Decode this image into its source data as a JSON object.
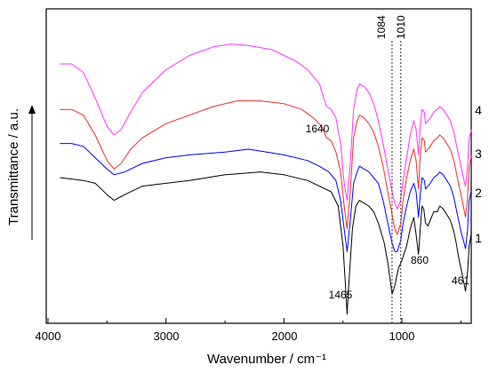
{
  "chart_data": {
    "type": "line",
    "xlabel": "Wavenumber / cm⁻¹",
    "ylabel": "Transmittance / a.u.",
    "xlim": [
      4000,
      400
    ],
    "x_reversed": true,
    "x_ticks": [
      4000,
      3000,
      2000,
      1000
    ],
    "x_tick_labels": [
      "4000",
      "3000",
      "2000",
      "1000"
    ],
    "y_tick_labels": "none",
    "grid": false,
    "reference_lines": [
      {
        "x": 1084,
        "label": "1084",
        "style": "dotted"
      },
      {
        "x": 1010,
        "label": "1010",
        "style": "dotted"
      }
    ],
    "annotations": [
      {
        "text": "1640",
        "x": 1640
      },
      {
        "text": "1465",
        "x": 1465
      },
      {
        "text": "860",
        "x": 860
      },
      {
        "text": "461",
        "x": 461
      }
    ],
    "series": [
      {
        "name": "1",
        "color": "#000000",
        "points": [
          [
            3900,
            0.5
          ],
          [
            3700,
            0.51
          ],
          [
            3600,
            0.52
          ],
          [
            3500,
            0.56
          ],
          [
            3440,
            0.58
          ],
          [
            3350,
            0.56
          ],
          [
            3200,
            0.53
          ],
          [
            3000,
            0.52
          ],
          [
            2800,
            0.51
          ],
          [
            2500,
            0.49
          ],
          [
            2200,
            0.48
          ],
          [
            2000,
            0.49
          ],
          [
            1800,
            0.51
          ],
          [
            1700,
            0.53
          ],
          [
            1600,
            0.55
          ],
          [
            1540,
            0.6
          ],
          [
            1500,
            0.74
          ],
          [
            1480,
            0.87
          ],
          [
            1465,
            0.98
          ],
          [
            1450,
            0.87
          ],
          [
            1420,
            0.68
          ],
          [
            1390,
            0.6
          ],
          [
            1360,
            0.58
          ],
          [
            1320,
            0.59
          ],
          [
            1280,
            0.6
          ],
          [
            1240,
            0.62
          ],
          [
            1200,
            0.66
          ],
          [
            1150,
            0.73
          ],
          [
            1120,
            0.8
          ],
          [
            1084,
            0.91
          ],
          [
            1060,
            0.88
          ],
          [
            1030,
            0.82
          ],
          [
            1000,
            0.79
          ],
          [
            960,
            0.74
          ],
          [
            930,
            0.68
          ],
          [
            900,
            0.64
          ],
          [
            880,
            0.7
          ],
          [
            860,
            0.77
          ],
          [
            845,
            0.68
          ],
          [
            830,
            0.6
          ],
          [
            815,
            0.61
          ],
          [
            800,
            0.66
          ],
          [
            780,
            0.67
          ],
          [
            760,
            0.65
          ],
          [
            730,
            0.62
          ],
          [
            700,
            0.62
          ],
          [
            680,
            0.6
          ],
          [
            650,
            0.61
          ],
          [
            620,
            0.63
          ],
          [
            590,
            0.65
          ],
          [
            560,
            0.69
          ],
          [
            540,
            0.73
          ],
          [
            520,
            0.78
          ],
          [
            500,
            0.82
          ],
          [
            480,
            0.86
          ],
          [
            461,
            0.9
          ],
          [
            445,
            0.84
          ],
          [
            430,
            0.74
          ],
          [
            410,
            0.69
          ]
        ]
      },
      {
        "name": "2",
        "color": "#0000ff",
        "points": [
          [
            3900,
            0.38
          ],
          [
            3800,
            0.38
          ],
          [
            3700,
            0.39
          ],
          [
            3600,
            0.43
          ],
          [
            3500,
            0.47
          ],
          [
            3440,
            0.49
          ],
          [
            3350,
            0.48
          ],
          [
            3200,
            0.45
          ],
          [
            3000,
            0.43
          ],
          [
            2800,
            0.42
          ],
          [
            2500,
            0.41
          ],
          [
            2300,
            0.4
          ],
          [
            2000,
            0.42
          ],
          [
            1800,
            0.44
          ],
          [
            1700,
            0.46
          ],
          [
            1620,
            0.48
          ],
          [
            1560,
            0.51
          ],
          [
            1520,
            0.58
          ],
          [
            1490,
            0.68
          ],
          [
            1465,
            0.76
          ],
          [
            1440,
            0.66
          ],
          [
            1410,
            0.52
          ],
          [
            1380,
            0.48
          ],
          [
            1360,
            0.46
          ],
          [
            1320,
            0.47
          ],
          [
            1280,
            0.48
          ],
          [
            1240,
            0.5
          ],
          [
            1200,
            0.52
          ],
          [
            1160,
            0.58
          ],
          [
            1120,
            0.66
          ],
          [
            1084,
            0.73
          ],
          [
            1060,
            0.76
          ],
          [
            1040,
            0.76
          ],
          [
            1010,
            0.72
          ],
          [
            990,
            0.66
          ],
          [
            960,
            0.6
          ],
          [
            930,
            0.55
          ],
          [
            900,
            0.52
          ],
          [
            880,
            0.55
          ],
          [
            860,
            0.64
          ],
          [
            845,
            0.56
          ],
          [
            830,
            0.5
          ],
          [
            810,
            0.51
          ],
          [
            800,
            0.54
          ],
          [
            780,
            0.53
          ],
          [
            760,
            0.52
          ],
          [
            730,
            0.5
          ],
          [
            700,
            0.49
          ],
          [
            680,
            0.48
          ],
          [
            650,
            0.49
          ],
          [
            620,
            0.51
          ],
          [
            590,
            0.53
          ],
          [
            560,
            0.57
          ],
          [
            540,
            0.61
          ],
          [
            520,
            0.65
          ],
          [
            500,
            0.69
          ],
          [
            480,
            0.72
          ],
          [
            461,
            0.75
          ],
          [
            445,
            0.69
          ],
          [
            430,
            0.58
          ],
          [
            410,
            0.54
          ]
        ]
      },
      {
        "name": "3",
        "color": "#e83030",
        "points": [
          [
            3900,
            0.26
          ],
          [
            3800,
            0.26
          ],
          [
            3700,
            0.28
          ],
          [
            3600,
            0.35
          ],
          [
            3500,
            0.44
          ],
          [
            3440,
            0.47
          ],
          [
            3380,
            0.45
          ],
          [
            3300,
            0.4
          ],
          [
            3200,
            0.36
          ],
          [
            3000,
            0.31
          ],
          [
            2800,
            0.28
          ],
          [
            2600,
            0.25
          ],
          [
            2400,
            0.23
          ],
          [
            2200,
            0.23
          ],
          [
            2000,
            0.24
          ],
          [
            1850,
            0.26
          ],
          [
            1750,
            0.29
          ],
          [
            1680,
            0.32
          ],
          [
            1640,
            0.36
          ],
          [
            1600,
            0.37
          ],
          [
            1560,
            0.41
          ],
          [
            1520,
            0.48
          ],
          [
            1490,
            0.6
          ],
          [
            1465,
            0.68
          ],
          [
            1440,
            0.56
          ],
          [
            1410,
            0.36
          ],
          [
            1380,
            0.3
          ],
          [
            1360,
            0.28
          ],
          [
            1320,
            0.29
          ],
          [
            1280,
            0.31
          ],
          [
            1240,
            0.34
          ],
          [
            1200,
            0.39
          ],
          [
            1160,
            0.46
          ],
          [
            1120,
            0.55
          ],
          [
            1084,
            0.63
          ],
          [
            1060,
            0.68
          ],
          [
            1040,
            0.7
          ],
          [
            1010,
            0.66
          ],
          [
            990,
            0.58
          ],
          [
            960,
            0.5
          ],
          [
            930,
            0.44
          ],
          [
            900,
            0.4
          ],
          [
            880,
            0.44
          ],
          [
            860,
            0.54
          ],
          [
            845,
            0.42
          ],
          [
            830,
            0.36
          ],
          [
            810,
            0.37
          ],
          [
            800,
            0.41
          ],
          [
            780,
            0.4
          ],
          [
            760,
            0.39
          ],
          [
            730,
            0.37
          ],
          [
            700,
            0.36
          ],
          [
            680,
            0.35
          ],
          [
            650,
            0.36
          ],
          [
            620,
            0.38
          ],
          [
            590,
            0.4
          ],
          [
            560,
            0.44
          ],
          [
            540,
            0.48
          ],
          [
            520,
            0.52
          ],
          [
            500,
            0.56
          ],
          [
            480,
            0.6
          ],
          [
            461,
            0.64
          ],
          [
            445,
            0.58
          ],
          [
            430,
            0.46
          ],
          [
            410,
            0.42
          ]
        ]
      },
      {
        "name": "4",
        "color": "#ff33ff",
        "points": [
          [
            3900,
            0.1
          ],
          [
            3800,
            0.1
          ],
          [
            3700,
            0.13
          ],
          [
            3600,
            0.22
          ],
          [
            3500,
            0.32
          ],
          [
            3440,
            0.35
          ],
          [
            3380,
            0.33
          ],
          [
            3300,
            0.27
          ],
          [
            3200,
            0.2
          ],
          [
            3000,
            0.12
          ],
          [
            2800,
            0.07
          ],
          [
            2600,
            0.04
          ],
          [
            2450,
            0.03
          ],
          [
            2300,
            0.035
          ],
          [
            2100,
            0.05
          ],
          [
            1900,
            0.09
          ],
          [
            1800,
            0.12
          ],
          [
            1700,
            0.17
          ],
          [
            1640,
            0.25
          ],
          [
            1600,
            0.26
          ],
          [
            1560,
            0.29
          ],
          [
            1520,
            0.38
          ],
          [
            1490,
            0.52
          ],
          [
            1465,
            0.58
          ],
          [
            1440,
            0.46
          ],
          [
            1410,
            0.26
          ],
          [
            1380,
            0.19
          ],
          [
            1360,
            0.17
          ],
          [
            1320,
            0.18
          ],
          [
            1280,
            0.2
          ],
          [
            1240,
            0.24
          ],
          [
            1200,
            0.3
          ],
          [
            1160,
            0.38
          ],
          [
            1120,
            0.47
          ],
          [
            1084,
            0.55
          ],
          [
            1060,
            0.59
          ],
          [
            1040,
            0.61
          ],
          [
            1010,
            0.58
          ],
          [
            990,
            0.51
          ],
          [
            960,
            0.43
          ],
          [
            930,
            0.35
          ],
          [
            900,
            0.3
          ],
          [
            880,
            0.33
          ],
          [
            860,
            0.42
          ],
          [
            845,
            0.32
          ],
          [
            830,
            0.26
          ],
          [
            810,
            0.27
          ],
          [
            800,
            0.31
          ],
          [
            780,
            0.3
          ],
          [
            760,
            0.29
          ],
          [
            730,
            0.27
          ],
          [
            700,
            0.26
          ],
          [
            680,
            0.25
          ],
          [
            650,
            0.26
          ],
          [
            620,
            0.28
          ],
          [
            590,
            0.3
          ],
          [
            560,
            0.34
          ],
          [
            540,
            0.38
          ],
          [
            520,
            0.42
          ],
          [
            500,
            0.46
          ],
          [
            480,
            0.5
          ],
          [
            461,
            0.53
          ],
          [
            445,
            0.47
          ],
          [
            430,
            0.36
          ],
          [
            410,
            0.33
          ]
        ]
      }
    ]
  }
}
